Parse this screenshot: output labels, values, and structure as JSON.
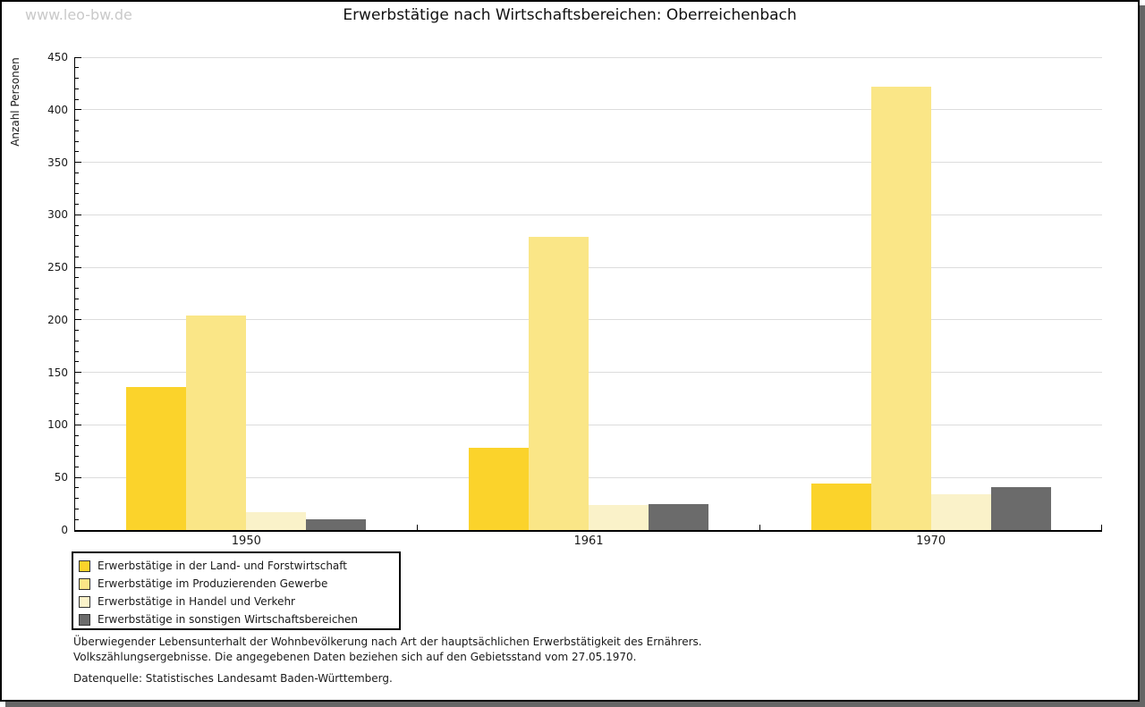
{
  "watermark": "www.leo-bw.de",
  "title": "Erwerbstätige nach Wirtschaftsbereichen: Oberreichenbach",
  "chart_data": {
    "type": "bar",
    "title": "Erwerbstätige nach Wirtschaftsbereichen: Oberreichenbach",
    "xlabel": "",
    "ylabel": "Anzahl Personen",
    "ylim": [
      0,
      450
    ],
    "ytick_step": 50,
    "yticks": [
      0,
      50,
      100,
      150,
      200,
      250,
      300,
      350,
      400,
      450
    ],
    "minor_tick_step": 10,
    "grid": "horizontal",
    "legend_position": "bottom-left",
    "categories": [
      "1950",
      "1961",
      "1970"
    ],
    "series": [
      {
        "name": "Erwerbstätige in der Land- und Forstwirtschaft",
        "color": "#FBD32B",
        "values": [
          136,
          78,
          44
        ]
      },
      {
        "name": "Erwerbstätige im Produzierenden Gewerbe",
        "color": "#FAE687",
        "values": [
          204,
          279,
          422
        ]
      },
      {
        "name": "Erwerbstätige in Handel und Verkehr",
        "color": "#FAF2C9",
        "values": [
          17,
          24,
          34
        ]
      },
      {
        "name": "Erwerbstätige in sonstigen Wirtschaftsbereichen",
        "color": "#6B6B6B",
        "values": [
          10,
          25,
          41
        ]
      }
    ]
  },
  "footnotes": {
    "line1": "Überwiegender Lebensunterhalt der Wohnbevölkerung nach Art der hauptsächlichen Erwerbstätigkeit des Ernährers.",
    "line2": "Volkszählungsergebnisse. Die angegebenen Daten beziehen sich auf den Gebietsstand vom 27.05.1970.",
    "source": "Datenquelle: Statistisches Landesamt Baden-Württemberg."
  }
}
